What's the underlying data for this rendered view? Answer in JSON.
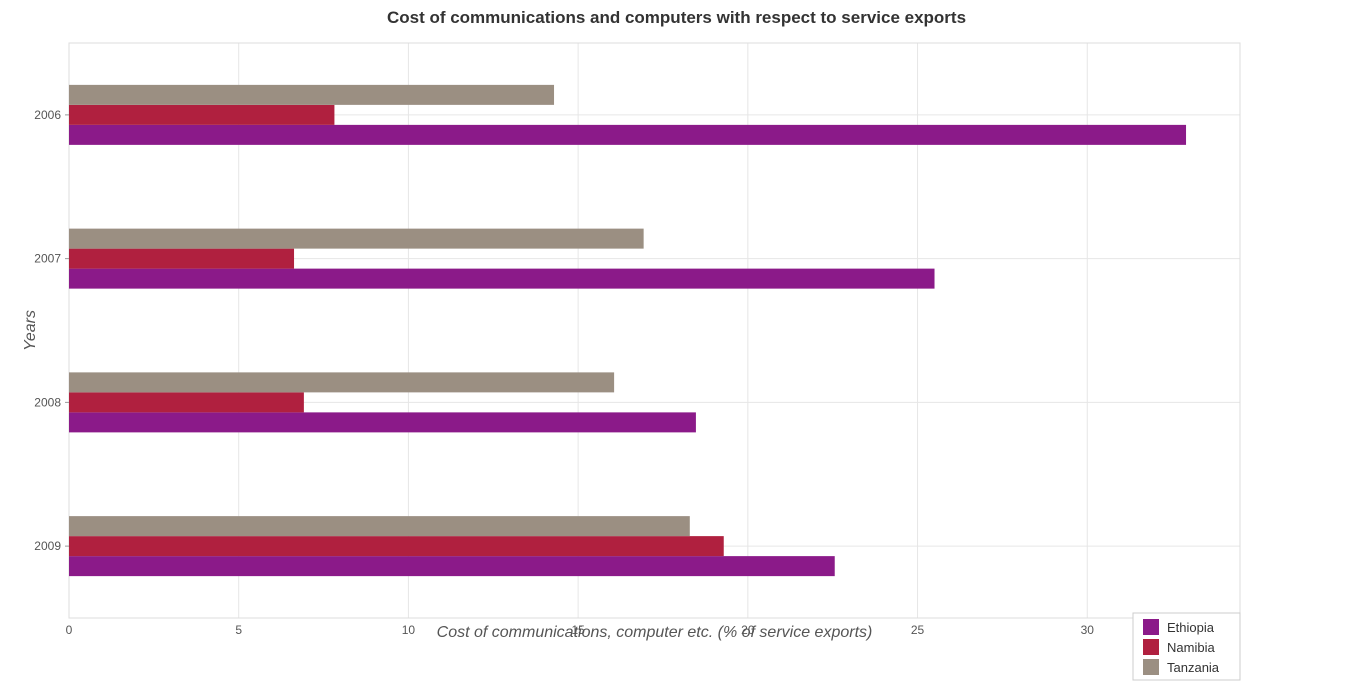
{
  "title": "Cost of communications and computers with respect to service exports",
  "chart_data": {
    "type": "bar",
    "orientation": "horizontal",
    "title": "Cost of communications and computers with respect to service exports",
    "xlabel": "Cost of communications, computer etc. (% of service exports)",
    "ylabel": "Years",
    "categories": [
      "2006",
      "2007",
      "2008",
      "2009"
    ],
    "series": [
      {
        "name": "Ethiopia",
        "color": "#8B1A89",
        "values": [
          32.91,
          25.5,
          18.47,
          22.56
        ]
      },
      {
        "name": "Namibia",
        "color": "#B0203F",
        "values": [
          7.82,
          6.63,
          6.92,
          19.29
        ]
      },
      {
        "name": "Tanzania",
        "color": "#9B8F82",
        "values": [
          14.29,
          16.93,
          16.06,
          18.29
        ]
      }
    ],
    "xlim": [
      0,
      34.5
    ],
    "xticks": [
      0,
      5,
      10,
      15,
      20,
      25,
      30
    ],
    "grid": true,
    "legend_position": "bottom-right"
  }
}
